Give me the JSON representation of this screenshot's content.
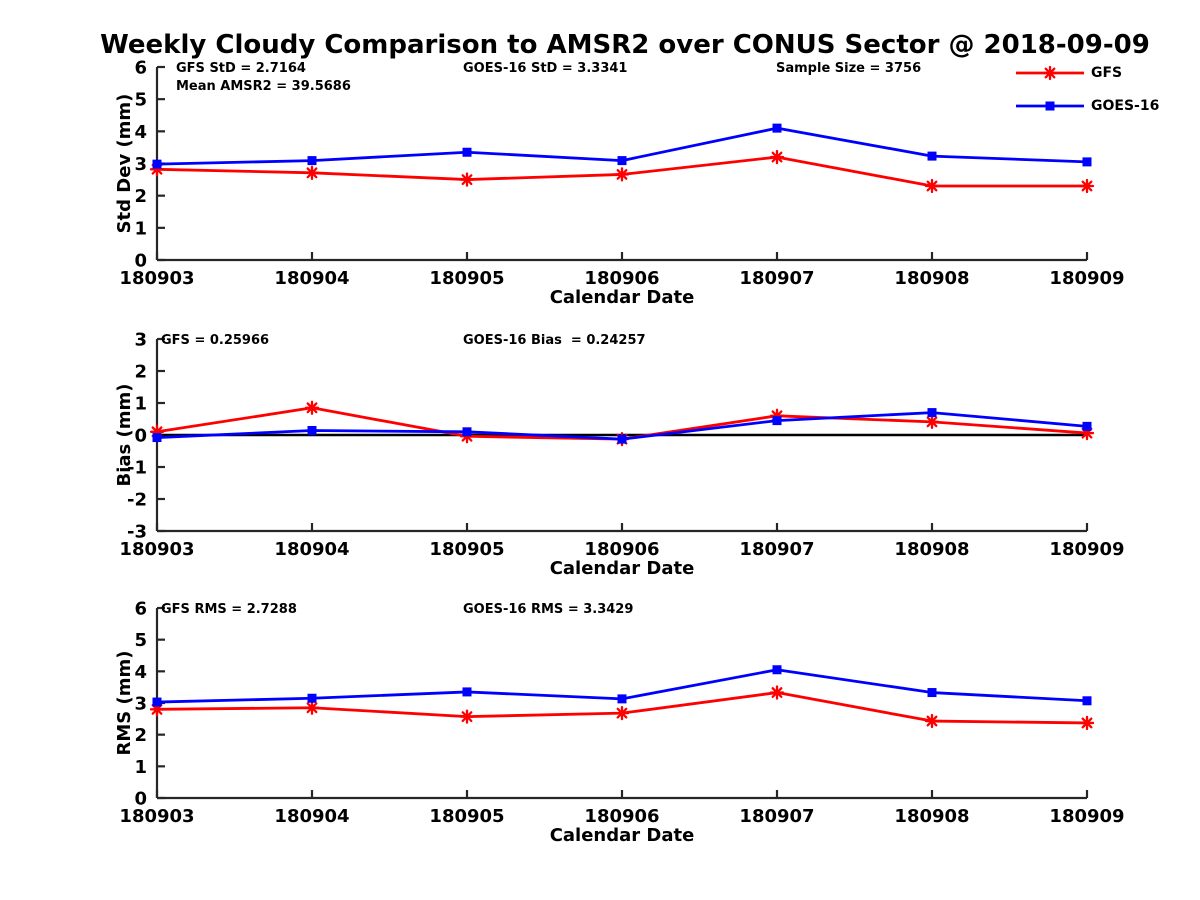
{
  "title": "Weekly Cloudy Comparison to AMSR2 over CONUS Sector @ 2018-09-09",
  "colors": {
    "gfs": "#ff0000",
    "goes16": "#0000ff",
    "axis": "#262626",
    "text": "#000000",
    "zero_line": "#000000"
  },
  "legend": {
    "entries": [
      {
        "label": "GFS",
        "color": "#ff0000",
        "marker": "asterisk"
      },
      {
        "label": "GOES-16",
        "color": "#0000ff",
        "marker": "square"
      }
    ]
  },
  "chart_data": [
    {
      "type": "line",
      "title": "",
      "xlabel": "Calendar Date",
      "ylabel": "Std Dev (mm)",
      "x": [
        "180903",
        "180904",
        "180905",
        "180906",
        "180907",
        "180908",
        "180909"
      ],
      "ylim": [
        0,
        6
      ],
      "ytick_labels": [
        "0",
        "1",
        "2",
        "3",
        "4",
        "5",
        "6"
      ],
      "grid": false,
      "zero_line": false,
      "annotations": [
        {
          "text": "GFS StD = 2.7164",
          "dx": 19,
          "row": 0
        },
        {
          "text": "Mean AMSR2 = 39.5686",
          "dx": 19,
          "row": 1
        },
        {
          "text": "GOES-16 StD = 3.3341",
          "dx": 306,
          "row": 0
        },
        {
          "text": "Sample Size = 3756",
          "dx": 619,
          "row": 0
        }
      ],
      "series": [
        {
          "name": "GFS",
          "color": "#ff0000",
          "marker": "asterisk",
          "values": [
            2.82,
            2.71,
            2.5,
            2.66,
            3.2,
            2.3,
            2.3
          ]
        },
        {
          "name": "GOES-16",
          "color": "#0000ff",
          "marker": "square",
          "values": [
            2.98,
            3.09,
            3.35,
            3.09,
            4.1,
            3.23,
            3.05
          ]
        }
      ]
    },
    {
      "type": "line",
      "title": "",
      "xlabel": "Calendar Date",
      "ylabel": "Bias (mm)",
      "x": [
        "180903",
        "180904",
        "180905",
        "180906",
        "180907",
        "180908",
        "180909"
      ],
      "ylim": [
        -3,
        3
      ],
      "ytick_labels": [
        "-3",
        "-2",
        "-1",
        "0",
        "1",
        "2",
        "3"
      ],
      "grid": false,
      "zero_line": true,
      "annotations": [
        {
          "text": "GFS = 0.25966",
          "dx": 4,
          "row": 0
        },
        {
          "text": "GOES-16 Bias  = 0.24257",
          "dx": 306,
          "row": 0
        }
      ],
      "series": [
        {
          "name": "GFS",
          "color": "#ff0000",
          "marker": "asterisk",
          "values": [
            0.1,
            0.85,
            -0.04,
            -0.13,
            0.6,
            0.41,
            0.06
          ]
        },
        {
          "name": "GOES-16",
          "color": "#0000ff",
          "marker": "square",
          "values": [
            -0.08,
            0.14,
            0.1,
            -0.13,
            0.45,
            0.7,
            0.27
          ]
        }
      ]
    },
    {
      "type": "line",
      "title": "",
      "xlabel": "Calendar Date",
      "ylabel": "RMS (mm)",
      "x": [
        "180903",
        "180904",
        "180905",
        "180906",
        "180907",
        "180908",
        "180909"
      ],
      "ylim": [
        0,
        6
      ],
      "ytick_labels": [
        "0",
        "1",
        "2",
        "3",
        "4",
        "5",
        "6"
      ],
      "grid": false,
      "zero_line": false,
      "annotations": [
        {
          "text": "GFS RMS = 2.7288",
          "dx": 4,
          "row": 0
        },
        {
          "text": "GOES-16 RMS = 3.3429",
          "dx": 306,
          "row": 0
        }
      ],
      "series": [
        {
          "name": "GFS",
          "color": "#ff0000",
          "marker": "asterisk",
          "values": [
            2.8,
            2.85,
            2.57,
            2.68,
            3.33,
            2.43,
            2.37
          ]
        },
        {
          "name": "GOES-16",
          "color": "#0000ff",
          "marker": "square",
          "values": [
            3.03,
            3.15,
            3.35,
            3.13,
            4.05,
            3.33,
            3.07
          ]
        }
      ]
    }
  ]
}
